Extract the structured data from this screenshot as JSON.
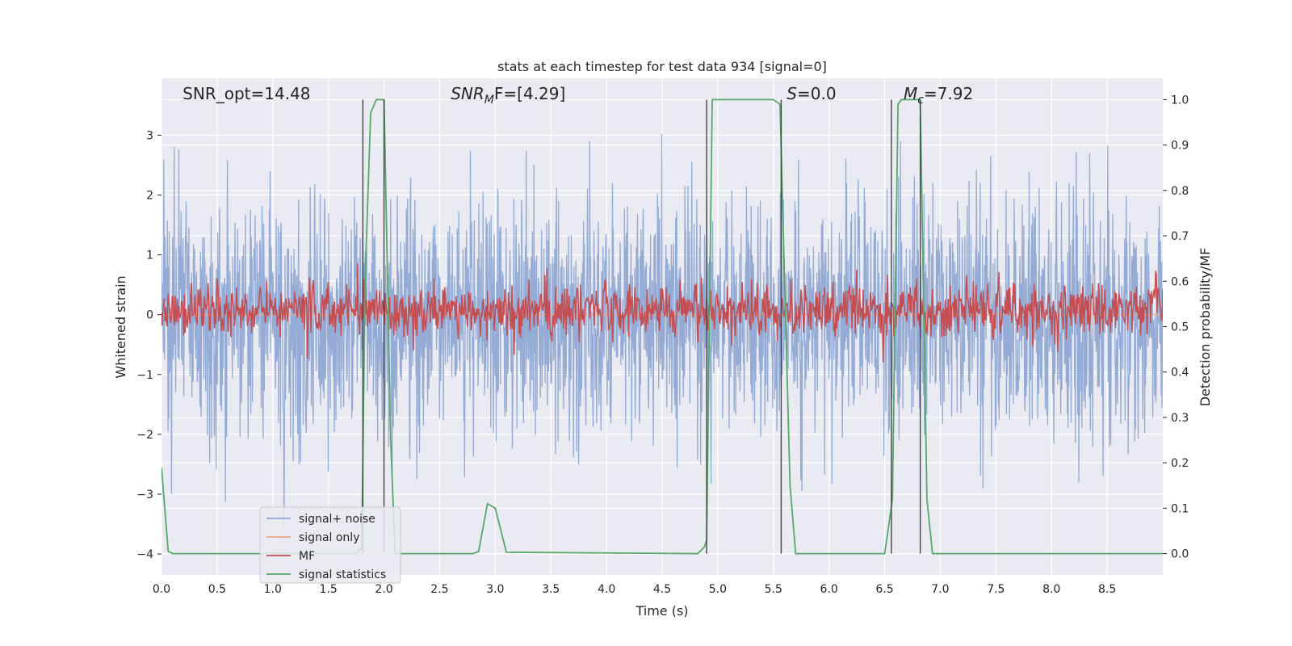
{
  "chart_data": {
    "type": "line",
    "title": "stats at each timestep for test data 934 [signal=0]",
    "xlabel": "Time (s)",
    "ylabel": "Whitened strain",
    "y2label": "Detection probability/MF",
    "xlim": [
      0,
      9.0
    ],
    "ylim": [
      -4.35,
      3.95
    ],
    "y2lim": [
      -0.047,
      1.047
    ],
    "x_ticks": [
      "0.0",
      "0.5",
      "1.0",
      "1.5",
      "2.0",
      "2.5",
      "3.0",
      "3.5",
      "4.0",
      "4.5",
      "5.0",
      "5.5",
      "6.0",
      "6.5",
      "7.0",
      "7.5",
      "8.0",
      "8.5"
    ],
    "y_ticks": [
      "−4",
      "−3",
      "−2",
      "−1",
      "0",
      "1",
      "2",
      "3"
    ],
    "y2_ticks": [
      "0.0",
      "0.1",
      "0.2",
      "0.3",
      "0.4",
      "0.5",
      "0.6",
      "0.7",
      "0.8",
      "0.9",
      "1.0"
    ],
    "grid": true,
    "legend_position": "lower-left",
    "annotations": [
      {
        "base": "SNR_opt=14.48",
        "sub": "",
        "rest": "",
        "x": 0.19,
        "italic": false
      },
      {
        "base": "SNR",
        "sub": "M",
        "rest": "F=[4.29]",
        "x": 2.6,
        "italic": true
      },
      {
        "base": "S",
        "sub": "",
        "rest": "=0.0",
        "x": 5.62,
        "italic": true
      },
      {
        "base": "M",
        "sub": "c",
        "rest": "=7.92",
        "x": 6.67,
        "italic": true
      }
    ],
    "vertical_lines": [
      1.81,
      2.0,
      4.9,
      5.57,
      6.56,
      6.82
    ],
    "series": [
      {
        "name": "signal+ noise",
        "color": "#8fa8d4",
        "axis": "left",
        "kind": "noise",
        "sigma": 1.0,
        "seed": 934
      },
      {
        "name": "signal only",
        "color": "#e9a98c",
        "axis": "left",
        "kind": "constant",
        "value": 0.0
      },
      {
        "name": "MF",
        "color": "#c44e52",
        "axis": "right",
        "kind": "noise",
        "mean": 0.535,
        "sigma": 0.03,
        "seed": 77
      },
      {
        "name": "signal statistics",
        "color": "#55a868",
        "axis": "right",
        "kind": "points",
        "x": [
          0.0,
          0.06,
          0.1,
          1.75,
          1.8,
          1.83,
          1.88,
          1.93,
          2.0,
          2.06,
          2.1,
          2.8,
          2.85,
          2.93,
          3.0,
          3.1,
          4.82,
          4.88,
          4.9,
          4.95,
          5.5,
          5.56,
          5.6,
          5.65,
          5.7,
          6.5,
          6.57,
          6.62,
          6.65,
          6.82,
          6.88,
          6.93,
          9.0
        ],
        "y": [
          0.19,
          0.005,
          0.0,
          0.0,
          0.012,
          0.6,
          0.97,
          1.0,
          1.0,
          0.25,
          0.0,
          0.0,
          0.005,
          0.11,
          0.1,
          0.003,
          0.0,
          0.015,
          0.03,
          1.0,
          1.0,
          0.99,
          0.6,
          0.15,
          0.0,
          0.0,
          0.12,
          0.99,
          1.0,
          1.0,
          0.12,
          0.0,
          0.0
        ]
      }
    ]
  }
}
